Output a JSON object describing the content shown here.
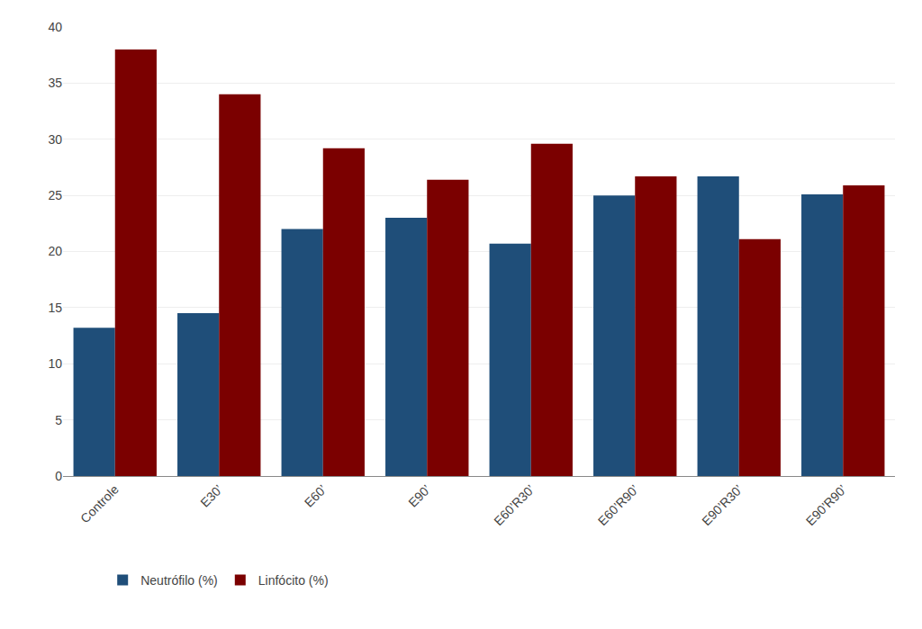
{
  "chart_data": {
    "type": "bar",
    "categories": [
      "Controle",
      "E30’",
      "E60’",
      "E90’",
      "E60’R30’",
      "E60’R90’",
      "E90’R30’",
      "E90’R90’"
    ],
    "series": [
      {
        "name": "Neutrófilo (%)",
        "color": "#1F4E79",
        "values": [
          13.2,
          14.5,
          22.0,
          23.0,
          20.7,
          25.0,
          26.7,
          25.1
        ]
      },
      {
        "name": "Linfócito (%)",
        "color": "#7B0000",
        "values": [
          38.0,
          34.0,
          29.2,
          26.4,
          29.6,
          26.7,
          21.1,
          25.9
        ]
      }
    ],
    "ylim": [
      0,
      40
    ],
    "yticks": [
      0,
      5,
      10,
      15,
      20,
      25,
      30,
      35,
      40
    ],
    "grid": true,
    "legend": "lower left"
  }
}
